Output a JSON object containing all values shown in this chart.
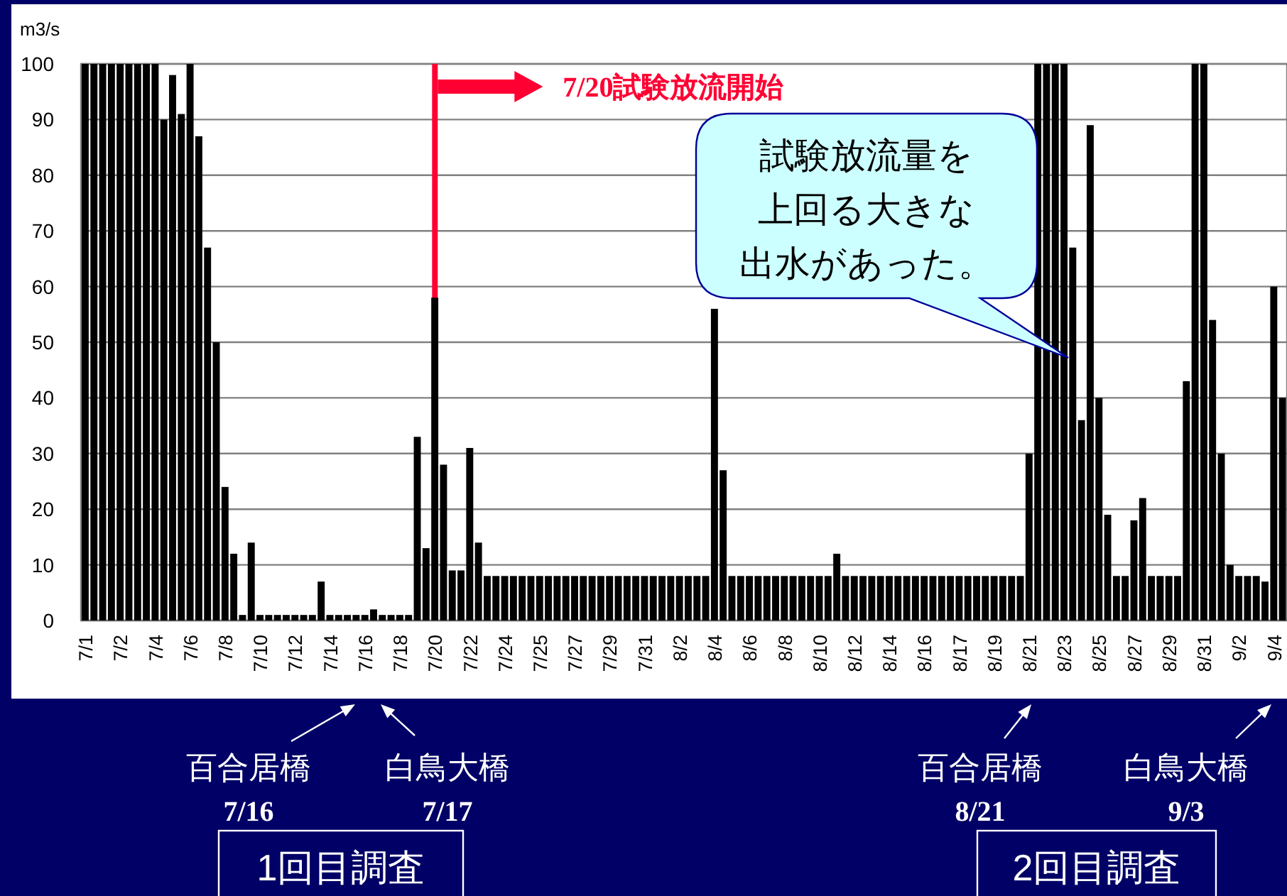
{
  "chart_data": {
    "type": "bar",
    "ylabel": "m3/s",
    "categories": [
      "7/1",
      null,
      null,
      null,
      "7/2",
      null,
      null,
      null,
      "7/4",
      null,
      null,
      null,
      "7/6",
      null,
      null,
      null,
      "7/8",
      null,
      null,
      null,
      "7/10",
      null,
      null,
      null,
      "7/12",
      null,
      null,
      null,
      "7/14",
      null,
      null,
      null,
      "7/16",
      null,
      null,
      null,
      "7/18",
      null,
      null,
      null,
      "7/20",
      null,
      null,
      null,
      "7/22",
      null,
      null,
      null,
      "7/24",
      null,
      null,
      null,
      "7/25",
      null,
      null,
      null,
      "7/27",
      null,
      null,
      null,
      "7/29",
      null,
      null,
      null,
      "7/31",
      null,
      null,
      null,
      "8/2",
      null,
      null,
      null,
      "8/4",
      null,
      null,
      null,
      "8/6",
      null,
      null,
      null,
      "8/8",
      null,
      null,
      null,
      "8/10",
      null,
      null,
      null,
      "8/12",
      null,
      null,
      null,
      "8/14",
      null,
      null,
      null,
      "8/16",
      null,
      null,
      null,
      "8/17",
      null,
      null,
      null,
      "8/19",
      null,
      null,
      null,
      "8/21",
      null,
      null,
      null,
      "8/23",
      null,
      null,
      null,
      "8/25",
      null,
      null,
      null,
      "8/27",
      null,
      null,
      null,
      "8/29",
      null,
      null,
      null,
      "8/31",
      null,
      null,
      null,
      "9/2",
      null,
      null,
      null,
      "9/4",
      null
    ],
    "values": [
      100,
      100,
      100,
      100,
      100,
      100,
      100,
      100,
      100,
      90,
      98,
      91,
      100,
      87,
      67,
      50,
      24,
      12,
      1,
      14,
      1,
      1,
      1,
      1,
      1,
      1,
      1,
      7,
      1,
      1,
      1,
      1,
      1,
      2,
      1,
      1,
      1,
      1,
      33,
      13,
      58,
      28,
      9,
      9,
      31,
      14,
      8,
      8,
      8,
      8,
      8,
      8,
      8,
      8,
      8,
      8,
      8,
      8,
      8,
      8,
      8,
      8,
      8,
      8,
      8,
      8,
      8,
      8,
      8,
      8,
      8,
      8,
      56,
      27,
      8,
      8,
      8,
      8,
      8,
      8,
      8,
      8,
      8,
      8,
      8,
      8,
      12,
      8,
      8,
      8,
      8,
      8,
      8,
      8,
      8,
      8,
      8,
      8,
      8,
      8,
      8,
      8,
      8,
      8,
      8,
      8,
      8,
      8,
      30,
      100,
      100,
      100,
      100,
      67,
      36,
      89,
      40,
      19,
      8,
      8,
      18,
      22,
      8,
      8,
      8,
      8,
      43,
      100,
      100,
      54,
      30,
      10,
      8,
      8,
      8,
      7,
      60,
      40
    ],
    "color": "#000000",
    "ylim": [
      0,
      100
    ],
    "yticks": [
      0,
      10,
      20,
      30,
      40,
      50,
      60,
      70,
      80,
      90,
      100
    ],
    "grid": "y",
    "ref_lines": [
      {
        "axis": "x",
        "value": "7/20",
        "label": "7/20試験放流開始",
        "color": "#ff0033"
      }
    ],
    "annotations": [
      "試験放流量を上回る大きな出水があった。",
      "百合居橋",
      "7/16",
      "白鳥大橋",
      "7/17",
      "百合居橋",
      "8/21",
      "白鳥大橋",
      "9/3",
      "1回目調査",
      "2回目調査"
    ]
  }
}
